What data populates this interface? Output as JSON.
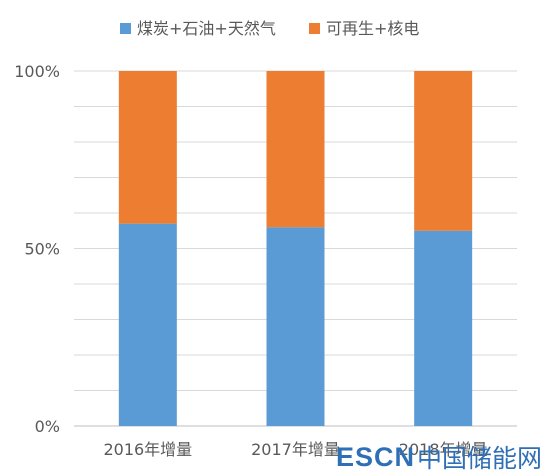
{
  "chart_data": {
    "type": "bar",
    "stacked": true,
    "categories": [
      "2016年增量",
      "2017年增量",
      "2018年增量"
    ],
    "series": [
      {
        "name": "煤炭+石油+天然气",
        "color": "#5b9bd5",
        "values": [
          57,
          56,
          55
        ]
      },
      {
        "name": "可再生+核电",
        "color": "#ed7d31",
        "values": [
          43,
          44,
          45
        ]
      }
    ],
    "yticks": [
      "0%",
      "50%",
      "100%"
    ],
    "ylim": [
      0,
      100
    ],
    "grid": true,
    "legend": "top"
  },
  "watermark": {
    "latin": "ESCN",
    "cjk": "中国储能网"
  }
}
